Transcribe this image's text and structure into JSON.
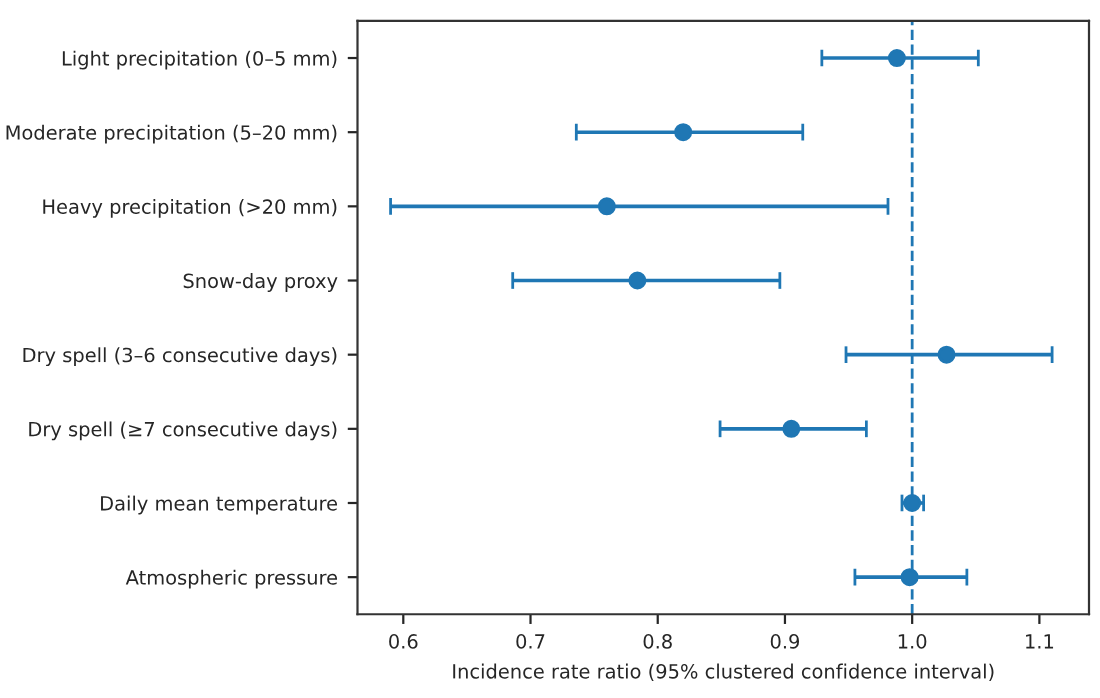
{
  "chart_data": {
    "type": "scatter",
    "orientation": "horizontal",
    "xlabel": "Incidence rate ratio (95% clustered confidence interval)",
    "categories": [
      "Light precipitation (0–5 mm)",
      "Moderate precipitation (5–20 mm)",
      "Heavy precipitation (>20 mm)",
      "Snow-day proxy",
      "Dry spell (3–6 consecutive days)",
      "Dry spell (≥7 consecutive days)",
      "Daily mean temperature",
      "Atmospheric pressure"
    ],
    "values": [
      0.988,
      0.82,
      0.76,
      0.784,
      1.027,
      0.905,
      1.0,
      0.998
    ],
    "errors": [
      [
        0.929,
        1.052
      ],
      [
        0.736,
        0.914
      ],
      [
        0.59,
        0.981
      ],
      [
        0.686,
        0.896
      ],
      [
        0.948,
        1.11
      ],
      [
        0.849,
        0.964
      ],
      [
        0.992,
        1.009
      ],
      [
        0.955,
        1.043
      ]
    ],
    "color": "#1f77b4",
    "marker": "circle",
    "xlim": [
      0.564,
      1.139
    ],
    "xticks": [
      0.6,
      0.7,
      0.8,
      0.9,
      {
        "value": 1.0,
        "label": "1.0"
      },
      1.1
    ],
    "ref_lines": [
      {
        "axis": "x",
        "value": 1.0,
        "color": "#1f77b4",
        "line_style": "dashed"
      }
    ],
    "grid": false
  }
}
